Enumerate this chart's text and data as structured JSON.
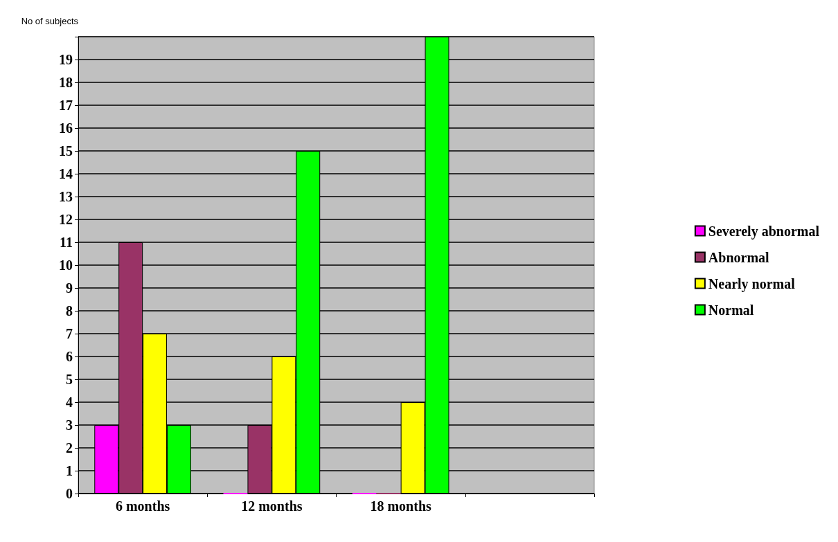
{
  "chart_data": {
    "type": "bar",
    "ylabel": "No of subjects",
    "categories": [
      "6 months",
      "12 months",
      "18 months",
      null
    ],
    "series": [
      {
        "name": "Severely abnormal",
        "color": "#ff00ff",
        "values": [
          3,
          0,
          0,
          null
        ]
      },
      {
        "name": "Abnormal",
        "color": "#993366",
        "values": [
          11,
          3,
          0,
          null
        ]
      },
      {
        "name": "Nearly normal",
        "color": "#ffff00",
        "values": [
          7,
          6,
          4,
          null
        ]
      },
      {
        "name": "Normal",
        "color": "#00ff00",
        "values": [
          3,
          15,
          20,
          null
        ]
      }
    ],
    "ylim": [
      0,
      20
    ],
    "yticks": [
      0,
      1,
      2,
      3,
      4,
      5,
      6,
      7,
      8,
      9,
      10,
      11,
      12,
      13,
      14,
      15,
      16,
      17,
      18,
      19,
      {
        "value": 20,
        "label": null
      }
    ],
    "grid": "y",
    "legend": "right"
  }
}
